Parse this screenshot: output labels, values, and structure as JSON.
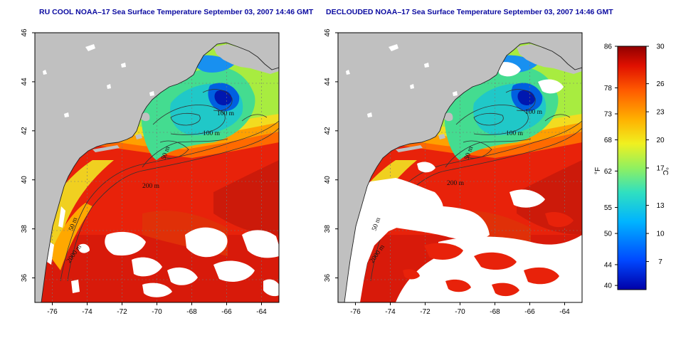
{
  "panels": [
    {
      "id": "left",
      "title": "RU COOL NOAA–17 Sea Surface Temperature September 03, 2007 14:46 GMT",
      "declouded": false
    },
    {
      "id": "right",
      "title": "DECLOUDED NOAA–17 Sea Surface Temperature September 03, 2007 14:46 GMT",
      "declouded": true
    }
  ],
  "map_extent": {
    "lon": [
      -77,
      -63
    ],
    "lat": [
      35,
      46
    ]
  },
  "lon_ticks": [
    -76,
    -74,
    -72,
    -70,
    -68,
    -66,
    -64
  ],
  "lat_ticks": [
    36,
    38,
    40,
    42,
    44,
    46
  ],
  "contour_labels": [
    "100 m",
    "100 m",
    "50 m",
    "200 m",
    "50 m",
    "2000 m"
  ],
  "colorbar": {
    "fahrenheit_label": "°F",
    "celsius_label": "°C",
    "fahrenheit_ticks": [
      "86",
      "78",
      "73",
      "68",
      "62",
      "55",
      "50",
      "44",
      "40"
    ],
    "celsius_ticks": [
      "30",
      "26",
      "23",
      "20",
      "17",
      "13",
      "10",
      "7"
    ],
    "range_c": [
      4,
      30
    ],
    "colors": [
      "#0000a8",
      "#0048ff",
      "#00b4ff",
      "#30e0c0",
      "#90f060",
      "#f0f020",
      "#ffb000",
      "#ff5a00",
      "#e01000",
      "#900000"
    ]
  },
  "colors": {
    "land": "#c0c0c0",
    "cloud": "#ffffff",
    "title": "#0a0aa0"
  }
}
